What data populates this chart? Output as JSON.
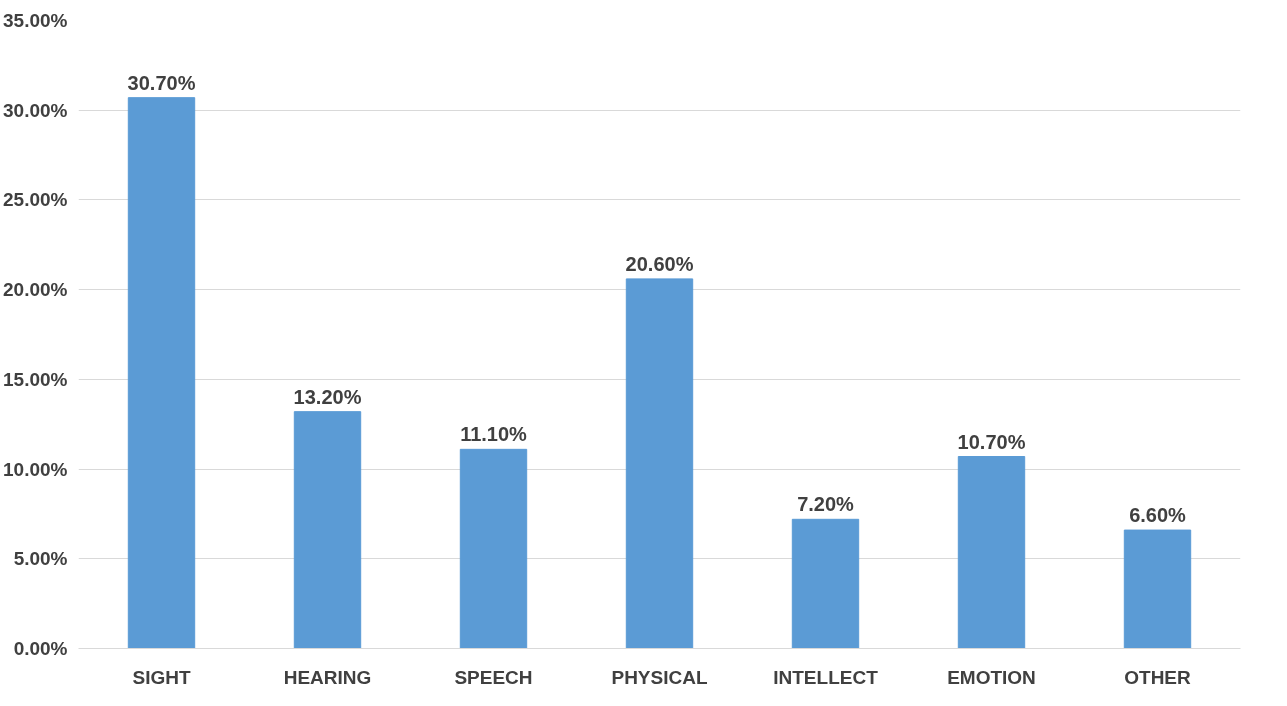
{
  "chart_data": {
    "type": "bar",
    "categories": [
      "SIGHT",
      "HEARING",
      "SPEECH",
      "PHYSICAL",
      "INTELLECT",
      "EMOTION",
      "OTHER"
    ],
    "values": [
      30.7,
      13.2,
      11.1,
      20.6,
      7.2,
      10.7,
      6.6
    ],
    "value_labels": [
      "30.70%",
      "13.20%",
      "11.10%",
      "20.60%",
      "7.20%",
      "10.70%",
      "6.60%"
    ],
    "color": "#5b9bd5",
    "ylim": [
      0,
      35
    ],
    "yticks": [
      {
        "value": 0,
        "label": "0.00%"
      },
      {
        "value": 5,
        "label": "5.00%"
      },
      {
        "value": 10,
        "label": "10.00%"
      },
      {
        "value": 15,
        "label": "15.00%"
      },
      {
        "value": 20,
        "label": "20.00%"
      },
      {
        "value": 25,
        "label": "25.00%"
      },
      {
        "value": 30,
        "label": "30.00%"
      },
      {
        "value": 35,
        "label": "35.00%"
      }
    ],
    "grid": "y"
  }
}
